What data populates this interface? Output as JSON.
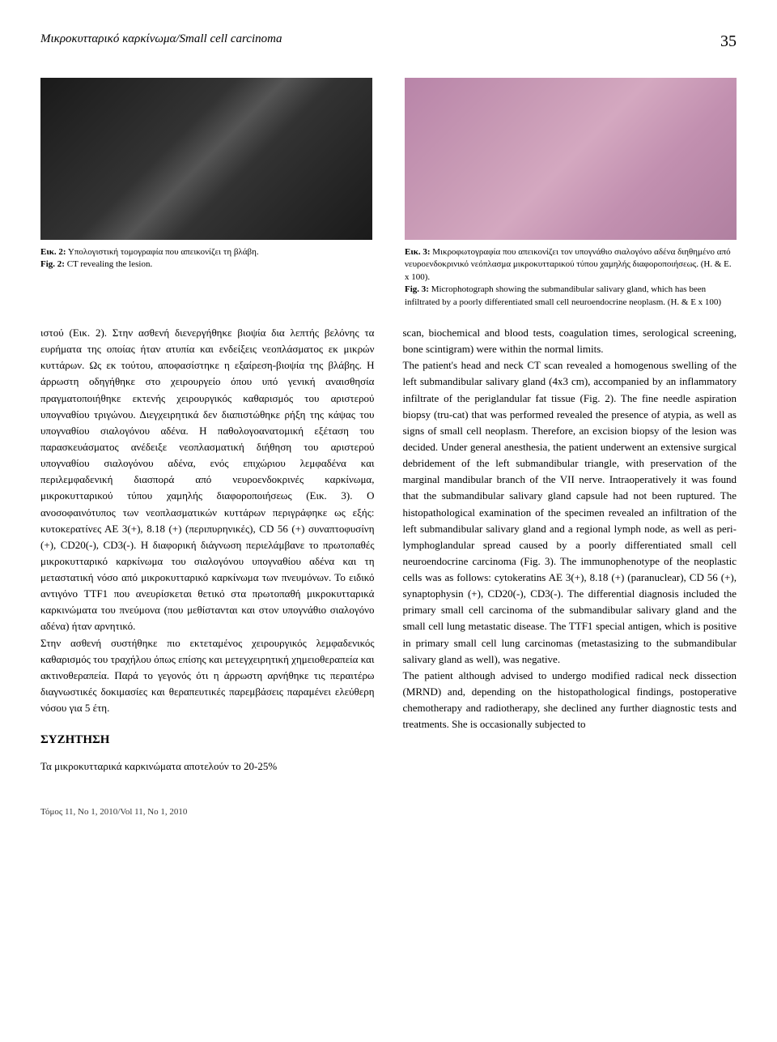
{
  "header": {
    "title": "Μικροκυτταρικό καρκίνωμα/Small cell carcinoma",
    "page_number": "35"
  },
  "figures": {
    "fig2": {
      "caption_gr_label": "Εικ. 2:",
      "caption_gr": " Υπολογιστική τομογραφία που απεικονίζει τη βλάβη.",
      "caption_en_label": "Fig. 2:",
      "caption_en": " CT revealing the lesion."
    },
    "fig3": {
      "caption_gr_label": "Εικ. 3:",
      "caption_gr": " Μικροφωτογραφία που απεικονίζει τον υπογνάθιο σιαλογόνο αδένα διηθημένο από νευροενδοκρινικό νεόπλασμα μικροκυτταρικού τύπου χαμηλής διαφοροποιήσεως. (Η. & Ε. x 100).",
      "caption_en_label": "Fig. 3:",
      "caption_en": " Microphotograph showing the submandibular salivary gland, which has been infiltrated by a poorly differentiated small cell neuroendocrine neoplasm. (H. & E x 100)"
    }
  },
  "body": {
    "greek_para1": "ιστού (Εικ. 2). Στην ασθενή διενεργήθηκε βιοψία δια λεπτής βελόνης τα ευρήματα της οποίας ήταν ατυπία και ενδείξεις νεοπλάσματος εκ μικρών κυττάρων. Ως εκ τούτου, αποφασίστηκε η εξαίρεση-βιοψία της βλάβης. Η άρρωστη οδηγήθηκε στο χειρουργείο όπου υπό γενική αναισθησία πραγματοποιήθηκε εκτενής χειρουργικός καθαρισμός του αριστερού υπογναθίου τριγώνου. Διεγχειρητικά δεν διαπιστώθηκε ρήξη της κάψας του υπογναθίου σιαλογόνου αδένα. Η παθολογοανατομική εξέταση του παρασκευάσματος ανέδειξε νεοπλασματική διήθηση του αριστερού υπογναθίου σιαλογόνου αδένα, ενός επιχώριου λεμφαδένα και περιλεμφαδενική διασπορά από νευροενδοκρινές καρκίνωμα, μικροκυτταρικού τύπου χαμηλής διαφοροποιήσεως (Εικ. 3). Ο ανοσοφαινότυπος των νεοπλασματικών κυττάρων περιγράφηκε ως εξής: κυτοκερατίνες ΑΕ 3(+), 8.18 (+) (περιπυρηνικές), CD 56 (+) συναπτοφυσίνη (+), CD20(-), CD3(-). Η διαφορική διάγνωση περιελάμβανε το πρωτοπαθές μικροκυτταρικό καρκίνωμα του σιαλογόνου υπογναθίου αδένα και τη μεταστατική νόσο από μικροκυτταρικό καρκίνωμα των πνευμόνων. Το ειδικό αντιγόνο TTF1 που ανευρίσκεται θετικό στα πρωτοπαθή μικροκυτταρικά καρκινώματα του πνεύμονα (που μεθίστανται και στον υπογνάθιο σιαλογόνο αδένα) ήταν αρνητικό.",
    "greek_para2": "Στην ασθενή συστήθηκε πιο εκτεταμένος χειρουργικός λεμφαδενικός καθαρισμός του τραχήλου όπως επίσης και μετεγχειρητική χημειοθεραπεία και ακτινοθεραπεία. Παρά το γεγονός ότι η άρρωστη αρνήθηκε τις περαιτέρω διαγνωστικές δοκιμασίες και θεραπευτικές παρεμβάσεις παραμένει ελεύθερη νόσου για 5 έτη.",
    "greek_heading": "ΣΥΖΗΤΗΣΗ",
    "greek_para3": "Τα μικροκυτταρικά καρκινώματα αποτελούν το 20-25%",
    "english_para1": "scan, biochemical and blood tests, coagulation times, serological screening, bone scintigram) were within the normal limits.",
    "english_para2": "The patient's head and neck CT scan revealed a homogenous swelling of the left submandibular salivary gland (4x3 cm), accompanied by an inflammatory infiltrate of the periglandular fat tissue (Fig. 2). The fine needle aspiration biopsy (tru-cat) that was performed revealed the presence of atypia, as well as signs of small cell neoplasm. Therefore, an excision biopsy of the lesion was decided. Under general anesthesia, the patient underwent an extensive surgical debridement of the left submandibular triangle, with preservation of the marginal mandibular branch of the VII nerve. Intraoperatively it was found that the submandibular salivary gland capsule had not been ruptured. The histopathological examination of the specimen revealed an infiltration of the left submandibular salivary gland and a regional lymph node, as well as peri-lymphoglandular spread caused by a poorly differentiated small cell neuroendocrine carcinoma (Fig. 3). The immunophenotype of the neoplastic cells was as follows: cytokeratins AE 3(+), 8.18 (+) (paranuclear), CD 56 (+), synaptophysin (+), CD20(-), CD3(-). The differential diagnosis included the primary small cell carcinoma of the submandibular salivary gland and the small cell lung metastatic disease. The TTF1 special antigen, which is positive in primary small cell lung carcinomas (metastasizing to the submandibular salivary gland as well), was negative.",
    "english_para3": "The patient although advised to undergo modified radical neck dissection (MRND) and, depending on the histopathological findings, postoperative chemotherapy and radiotherapy, she declined any further diagnostic tests and treatments. She is occasionally subjected to"
  },
  "footer": {
    "text": "Τόμος 11, No 1, 2010/Vol 11, No 1, 2010"
  }
}
